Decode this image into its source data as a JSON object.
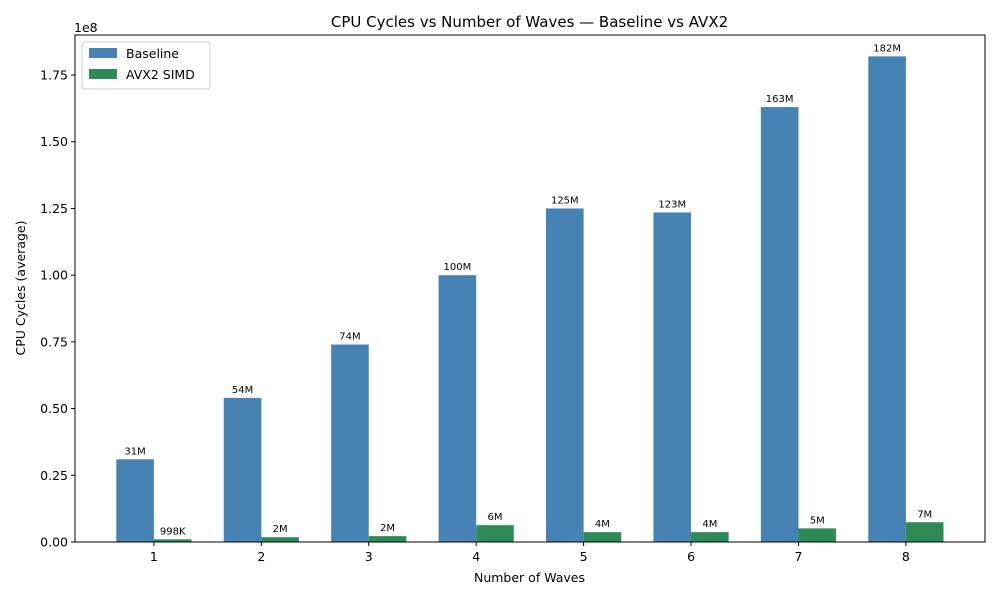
{
  "chart_data": {
    "type": "bar",
    "title": "CPU Cycles vs Number of Waves — Baseline vs AVX2",
    "xlabel": "Number of Waves",
    "ylabel": "CPU Cycles (average)",
    "y_offset_label": "1e8",
    "categories": [
      "1",
      "2",
      "3",
      "4",
      "5",
      "6",
      "7",
      "8"
    ],
    "ylim": [
      0,
      1.9
    ],
    "y_ticks": [
      "0.00",
      "0.25",
      "0.50",
      "0.75",
      "1.00",
      "1.25",
      "1.50",
      "1.75"
    ],
    "legend_position": "top-left",
    "series": [
      {
        "name": "Baseline",
        "color": "#4682b4",
        "values": [
          0.31,
          0.54,
          0.74,
          1.0,
          1.25,
          1.235,
          1.63,
          1.82
        ],
        "labels": [
          "31M",
          "54M",
          "74M",
          "100M",
          "125M",
          "123M",
          "163M",
          "182M"
        ]
      },
      {
        "name": "AVX2 SIMD",
        "color": "#2e8b57",
        "values": [
          0.00998,
          0.018,
          0.022,
          0.063,
          0.037,
          0.037,
          0.051,
          0.074
        ],
        "labels": [
          "998K",
          "2M",
          "2M",
          "6M",
          "4M",
          "4M",
          "5M",
          "7M"
        ]
      }
    ]
  }
}
